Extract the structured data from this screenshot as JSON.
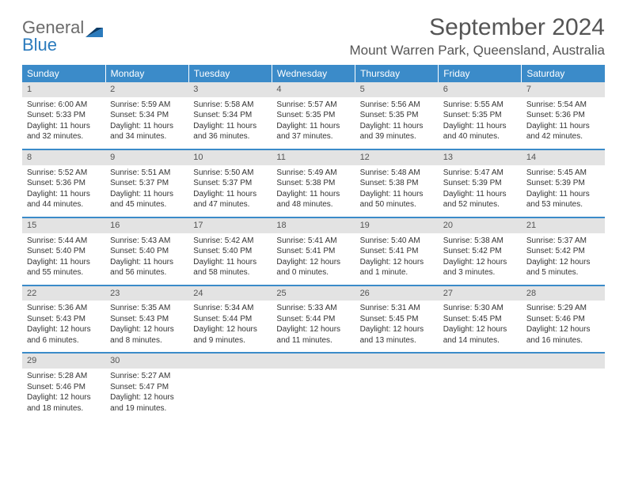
{
  "brand": {
    "word1": "General",
    "word2": "Blue"
  },
  "title": "September 2024",
  "location": "Mount Warren Park, Queensland, Australia",
  "colors": {
    "header_bg": "#3b8bc9",
    "header_text": "#ffffff",
    "daynum_bg": "#e3e3e3",
    "rule": "#3b8bc9",
    "text": "#333333",
    "brand_gray": "#6b6b6b",
    "brand_blue": "#2b7bbd"
  },
  "weekdays": [
    "Sunday",
    "Monday",
    "Tuesday",
    "Wednesday",
    "Thursday",
    "Friday",
    "Saturday"
  ],
  "weeks": [
    [
      {
        "n": "1",
        "sr": "Sunrise: 6:00 AM",
        "ss": "Sunset: 5:33 PM",
        "d1": "Daylight: 11 hours",
        "d2": "and 32 minutes."
      },
      {
        "n": "2",
        "sr": "Sunrise: 5:59 AM",
        "ss": "Sunset: 5:34 PM",
        "d1": "Daylight: 11 hours",
        "d2": "and 34 minutes."
      },
      {
        "n": "3",
        "sr": "Sunrise: 5:58 AM",
        "ss": "Sunset: 5:34 PM",
        "d1": "Daylight: 11 hours",
        "d2": "and 36 minutes."
      },
      {
        "n": "4",
        "sr": "Sunrise: 5:57 AM",
        "ss": "Sunset: 5:35 PM",
        "d1": "Daylight: 11 hours",
        "d2": "and 37 minutes."
      },
      {
        "n": "5",
        "sr": "Sunrise: 5:56 AM",
        "ss": "Sunset: 5:35 PM",
        "d1": "Daylight: 11 hours",
        "d2": "and 39 minutes."
      },
      {
        "n": "6",
        "sr": "Sunrise: 5:55 AM",
        "ss": "Sunset: 5:35 PM",
        "d1": "Daylight: 11 hours",
        "d2": "and 40 minutes."
      },
      {
        "n": "7",
        "sr": "Sunrise: 5:54 AM",
        "ss": "Sunset: 5:36 PM",
        "d1": "Daylight: 11 hours",
        "d2": "and 42 minutes."
      }
    ],
    [
      {
        "n": "8",
        "sr": "Sunrise: 5:52 AM",
        "ss": "Sunset: 5:36 PM",
        "d1": "Daylight: 11 hours",
        "d2": "and 44 minutes."
      },
      {
        "n": "9",
        "sr": "Sunrise: 5:51 AM",
        "ss": "Sunset: 5:37 PM",
        "d1": "Daylight: 11 hours",
        "d2": "and 45 minutes."
      },
      {
        "n": "10",
        "sr": "Sunrise: 5:50 AM",
        "ss": "Sunset: 5:37 PM",
        "d1": "Daylight: 11 hours",
        "d2": "and 47 minutes."
      },
      {
        "n": "11",
        "sr": "Sunrise: 5:49 AM",
        "ss": "Sunset: 5:38 PM",
        "d1": "Daylight: 11 hours",
        "d2": "and 48 minutes."
      },
      {
        "n": "12",
        "sr": "Sunrise: 5:48 AM",
        "ss": "Sunset: 5:38 PM",
        "d1": "Daylight: 11 hours",
        "d2": "and 50 minutes."
      },
      {
        "n": "13",
        "sr": "Sunrise: 5:47 AM",
        "ss": "Sunset: 5:39 PM",
        "d1": "Daylight: 11 hours",
        "d2": "and 52 minutes."
      },
      {
        "n": "14",
        "sr": "Sunrise: 5:45 AM",
        "ss": "Sunset: 5:39 PM",
        "d1": "Daylight: 11 hours",
        "d2": "and 53 minutes."
      }
    ],
    [
      {
        "n": "15",
        "sr": "Sunrise: 5:44 AM",
        "ss": "Sunset: 5:40 PM",
        "d1": "Daylight: 11 hours",
        "d2": "and 55 minutes."
      },
      {
        "n": "16",
        "sr": "Sunrise: 5:43 AM",
        "ss": "Sunset: 5:40 PM",
        "d1": "Daylight: 11 hours",
        "d2": "and 56 minutes."
      },
      {
        "n": "17",
        "sr": "Sunrise: 5:42 AM",
        "ss": "Sunset: 5:40 PM",
        "d1": "Daylight: 11 hours",
        "d2": "and 58 minutes."
      },
      {
        "n": "18",
        "sr": "Sunrise: 5:41 AM",
        "ss": "Sunset: 5:41 PM",
        "d1": "Daylight: 12 hours",
        "d2": "and 0 minutes."
      },
      {
        "n": "19",
        "sr": "Sunrise: 5:40 AM",
        "ss": "Sunset: 5:41 PM",
        "d1": "Daylight: 12 hours",
        "d2": "and 1 minute."
      },
      {
        "n": "20",
        "sr": "Sunrise: 5:38 AM",
        "ss": "Sunset: 5:42 PM",
        "d1": "Daylight: 12 hours",
        "d2": "and 3 minutes."
      },
      {
        "n": "21",
        "sr": "Sunrise: 5:37 AM",
        "ss": "Sunset: 5:42 PM",
        "d1": "Daylight: 12 hours",
        "d2": "and 5 minutes."
      }
    ],
    [
      {
        "n": "22",
        "sr": "Sunrise: 5:36 AM",
        "ss": "Sunset: 5:43 PM",
        "d1": "Daylight: 12 hours",
        "d2": "and 6 minutes."
      },
      {
        "n": "23",
        "sr": "Sunrise: 5:35 AM",
        "ss": "Sunset: 5:43 PM",
        "d1": "Daylight: 12 hours",
        "d2": "and 8 minutes."
      },
      {
        "n": "24",
        "sr": "Sunrise: 5:34 AM",
        "ss": "Sunset: 5:44 PM",
        "d1": "Daylight: 12 hours",
        "d2": "and 9 minutes."
      },
      {
        "n": "25",
        "sr": "Sunrise: 5:33 AM",
        "ss": "Sunset: 5:44 PM",
        "d1": "Daylight: 12 hours",
        "d2": "and 11 minutes."
      },
      {
        "n": "26",
        "sr": "Sunrise: 5:31 AM",
        "ss": "Sunset: 5:45 PM",
        "d1": "Daylight: 12 hours",
        "d2": "and 13 minutes."
      },
      {
        "n": "27",
        "sr": "Sunrise: 5:30 AM",
        "ss": "Sunset: 5:45 PM",
        "d1": "Daylight: 12 hours",
        "d2": "and 14 minutes."
      },
      {
        "n": "28",
        "sr": "Sunrise: 5:29 AM",
        "ss": "Sunset: 5:46 PM",
        "d1": "Daylight: 12 hours",
        "d2": "and 16 minutes."
      }
    ],
    [
      {
        "n": "29",
        "sr": "Sunrise: 5:28 AM",
        "ss": "Sunset: 5:46 PM",
        "d1": "Daylight: 12 hours",
        "d2": "and 18 minutes."
      },
      {
        "n": "30",
        "sr": "Sunrise: 5:27 AM",
        "ss": "Sunset: 5:47 PM",
        "d1": "Daylight: 12 hours",
        "d2": "and 19 minutes."
      },
      null,
      null,
      null,
      null,
      null
    ]
  ]
}
